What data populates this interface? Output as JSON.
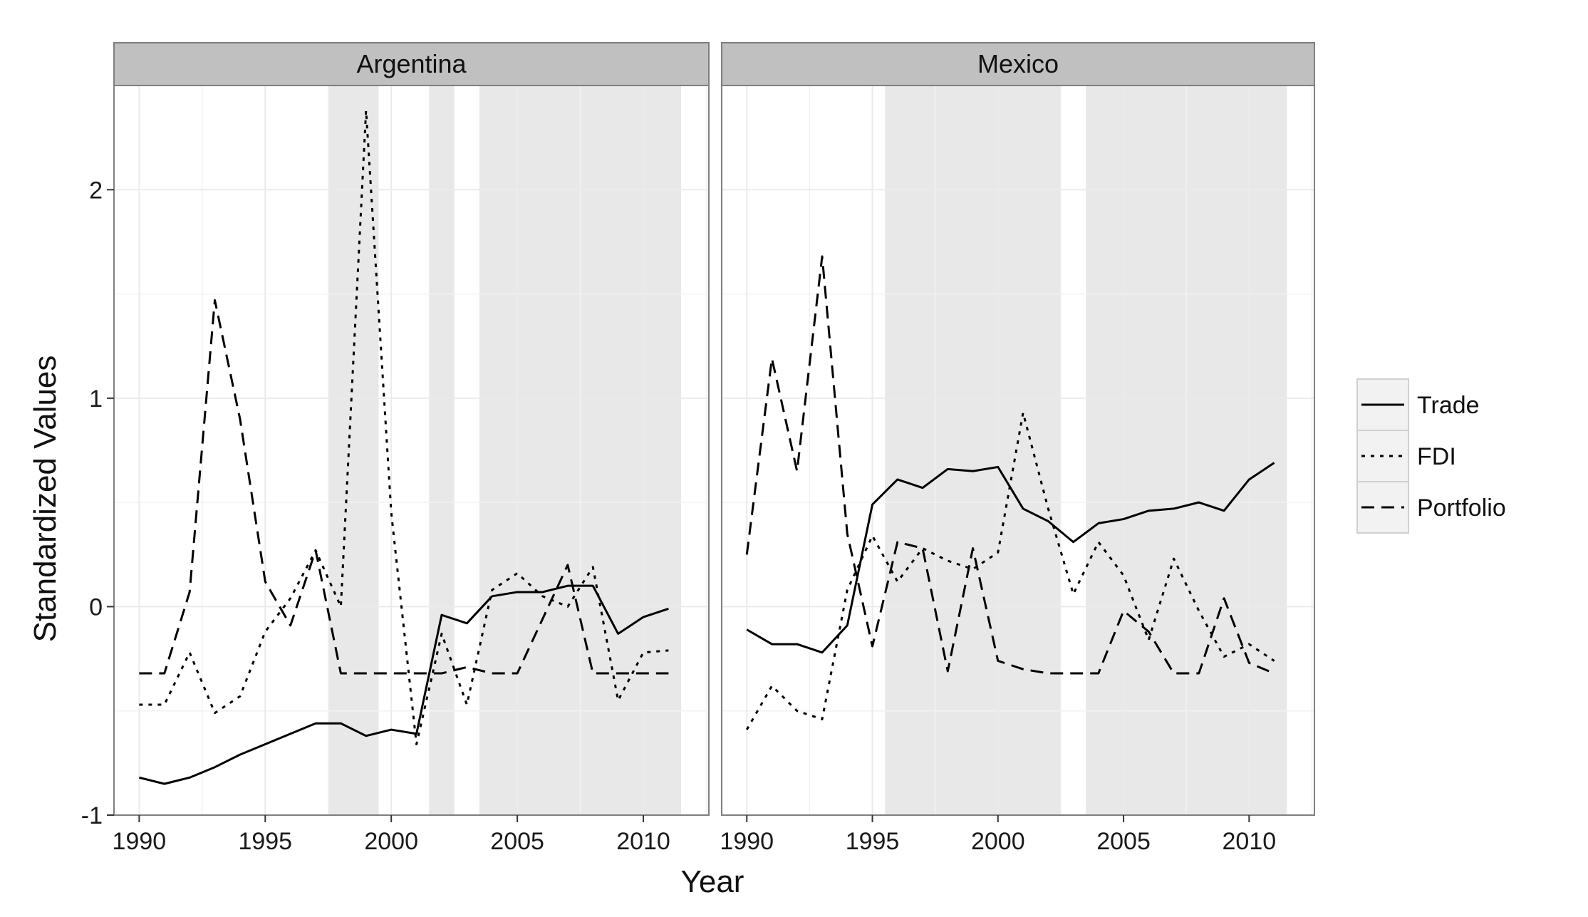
{
  "chart_data": {
    "type": "line",
    "xlabel": "Year",
    "ylabel": "Standardized Values",
    "xlim": [
      1989,
      2012.6
    ],
    "ylim": [
      -1,
      2.5
    ],
    "x_ticks": [
      1990,
      1995,
      2000,
      2005,
      2010
    ],
    "y_ticks": [
      -1,
      0,
      1,
      2
    ],
    "grid": true,
    "legend_position": "right",
    "legend": [
      "Trade",
      "FDI",
      "Portfolio"
    ],
    "styles": {
      "Trade": "solid",
      "FDI": "dotted",
      "Portfolio": "dashed"
    },
    "colors": {
      "line": "#000000",
      "shade": "#e8e8e8",
      "strip": "#c0c0c0",
      "grid": "#ebebeb",
      "frame": "#7f7f7f"
    },
    "years": [
      1990,
      1991,
      1992,
      1993,
      1994,
      1995,
      1996,
      1997,
      1998,
      1999,
      2000,
      2001,
      2002,
      2003,
      2004,
      2005,
      2006,
      2007,
      2008,
      2009,
      2010,
      2011
    ],
    "panels": [
      {
        "name": "Argentina",
        "shaded": [
          [
            1997.5,
            1999.5
          ],
          [
            2001.5,
            2002.5
          ],
          [
            2003.5,
            2011.5
          ]
        ],
        "series": [
          {
            "name": "Trade",
            "values": [
              -0.82,
              -0.85,
              -0.82,
              -0.77,
              -0.71,
              -0.66,
              -0.61,
              -0.56,
              -0.56,
              -0.62,
              -0.59,
              -0.61,
              -0.04,
              -0.08,
              0.05,
              0.07,
              0.07,
              0.1,
              0.1,
              -0.13,
              -0.05,
              -0.01
            ]
          },
          {
            "name": "FDI",
            "values": [
              -0.47,
              -0.47,
              -0.22,
              -0.51,
              -0.43,
              -0.12,
              0.04,
              0.27,
              0.0,
              2.38,
              0.45,
              -0.66,
              -0.13,
              -0.47,
              0.08,
              0.16,
              0.05,
              0.0,
              0.19,
              -0.45,
              -0.22,
              -0.21
            ]
          },
          {
            "name": "Portfolio",
            "values": [
              -0.32,
              -0.32,
              0.07,
              1.47,
              0.9,
              0.12,
              -0.09,
              0.27,
              -0.32,
              -0.32,
              -0.32,
              -0.32,
              -0.32,
              -0.29,
              -0.32,
              -0.32,
              -0.06,
              0.2,
              -0.32,
              -0.32,
              -0.32,
              -0.32
            ]
          }
        ]
      },
      {
        "name": "Mexico",
        "shaded": [
          [
            1995.5,
            2002.5
          ],
          [
            2003.5,
            2011.5
          ]
        ],
        "series": [
          {
            "name": "Trade",
            "values": [
              -0.11,
              -0.18,
              -0.18,
              -0.22,
              -0.09,
              0.49,
              0.61,
              0.57,
              0.66,
              0.65,
              0.67,
              0.47,
              0.41,
              0.31,
              0.4,
              0.42,
              0.46,
              0.47,
              0.5,
              0.46,
              0.61,
              0.69
            ]
          },
          {
            "name": "FDI",
            "values": [
              -0.59,
              -0.38,
              -0.5,
              -0.54,
              0.08,
              0.34,
              0.12,
              0.28,
              0.22,
              0.18,
              0.26,
              0.93,
              0.47,
              0.06,
              0.31,
              0.15,
              -0.16,
              0.23,
              -0.02,
              -0.24,
              -0.18,
              -0.26
            ]
          },
          {
            "name": "Portfolio",
            "values": [
              0.25,
              1.19,
              0.65,
              1.68,
              0.35,
              -0.19,
              0.31,
              0.28,
              -0.31,
              0.28,
              -0.26,
              -0.3,
              -0.32,
              -0.32,
              -0.32,
              -0.02,
              -0.12,
              -0.32,
              -0.32,
              0.04,
              -0.27,
              -0.32
            ]
          }
        ]
      }
    ]
  }
}
